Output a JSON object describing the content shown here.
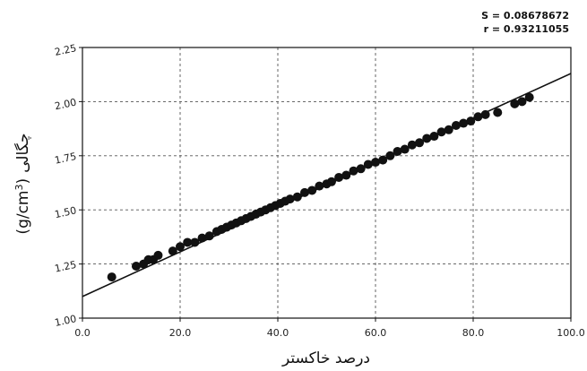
{
  "chart_data": {
    "type": "scatter",
    "title": "",
    "xlabel": "درصد خاکستر",
    "ylabel": "چگالی (g/cm³)",
    "ylabel_parts": {
      "word": "چگالی",
      "unit": "(g/cm",
      "unit_sup": "3",
      "unit_close": ")"
    },
    "xlim": [
      0,
      100
    ],
    "ylim": [
      1.0,
      2.25
    ],
    "grid": true,
    "x_ticks": [
      0,
      20,
      40,
      60,
      80,
      100
    ],
    "x_tick_labels": [
      "0.0",
      "20.0",
      "40.0",
      "60.0",
      "80.0",
      "100.0"
    ],
    "y_ticks": [
      1.0,
      1.25,
      1.5,
      1.75,
      2.0,
      2.25
    ],
    "y_tick_labels": [
      "1.00",
      "1.25",
      "1.50",
      "1.75",
      "2.00",
      "2.25"
    ],
    "stats": [
      "S = 0.08678672",
      "r = 0.93211055"
    ],
    "fit_line": {
      "x": [
        0,
        100
      ],
      "y": [
        1.1,
        2.13
      ]
    },
    "points": [
      {
        "x": 6.0,
        "y": 1.19
      },
      {
        "x": 11.0,
        "y": 1.24
      },
      {
        "x": 12.5,
        "y": 1.25
      },
      {
        "x": 13.5,
        "y": 1.27
      },
      {
        "x": 14.5,
        "y": 1.27
      },
      {
        "x": 15.5,
        "y": 1.29
      },
      {
        "x": 18.5,
        "y": 1.31
      },
      {
        "x": 20.0,
        "y": 1.33
      },
      {
        "x": 21.5,
        "y": 1.35
      },
      {
        "x": 23.0,
        "y": 1.35
      },
      {
        "x": 24.5,
        "y": 1.37
      },
      {
        "x": 26.0,
        "y": 1.38
      },
      {
        "x": 27.5,
        "y": 1.4
      },
      {
        "x": 28.5,
        "y": 1.41
      },
      {
        "x": 29.5,
        "y": 1.42
      },
      {
        "x": 30.5,
        "y": 1.43
      },
      {
        "x": 31.5,
        "y": 1.44
      },
      {
        "x": 32.5,
        "y": 1.45
      },
      {
        "x": 33.5,
        "y": 1.46
      },
      {
        "x": 34.5,
        "y": 1.47
      },
      {
        "x": 35.5,
        "y": 1.48
      },
      {
        "x": 36.5,
        "y": 1.49
      },
      {
        "x": 37.5,
        "y": 1.5
      },
      {
        "x": 38.5,
        "y": 1.51
      },
      {
        "x": 39.5,
        "y": 1.52
      },
      {
        "x": 40.5,
        "y": 1.53
      },
      {
        "x": 41.5,
        "y": 1.54
      },
      {
        "x": 42.5,
        "y": 1.55
      },
      {
        "x": 44.0,
        "y": 1.56
      },
      {
        "x": 45.5,
        "y": 1.58
      },
      {
        "x": 47.0,
        "y": 1.59
      },
      {
        "x": 48.5,
        "y": 1.61
      },
      {
        "x": 50.0,
        "y": 1.62
      },
      {
        "x": 51.0,
        "y": 1.63
      },
      {
        "x": 52.5,
        "y": 1.65
      },
      {
        "x": 54.0,
        "y": 1.66
      },
      {
        "x": 55.5,
        "y": 1.68
      },
      {
        "x": 57.0,
        "y": 1.69
      },
      {
        "x": 58.5,
        "y": 1.71
      },
      {
        "x": 60.0,
        "y": 1.72
      },
      {
        "x": 61.5,
        "y": 1.73
      },
      {
        "x": 63.0,
        "y": 1.75
      },
      {
        "x": 64.5,
        "y": 1.77
      },
      {
        "x": 66.0,
        "y": 1.78
      },
      {
        "x": 67.5,
        "y": 1.8
      },
      {
        "x": 69.0,
        "y": 1.81
      },
      {
        "x": 70.5,
        "y": 1.83
      },
      {
        "x": 72.0,
        "y": 1.84
      },
      {
        "x": 73.5,
        "y": 1.86
      },
      {
        "x": 75.0,
        "y": 1.87
      },
      {
        "x": 76.5,
        "y": 1.89
      },
      {
        "x": 78.0,
        "y": 1.9
      },
      {
        "x": 79.5,
        "y": 1.91
      },
      {
        "x": 81.0,
        "y": 1.93
      },
      {
        "x": 82.5,
        "y": 1.94
      },
      {
        "x": 85.0,
        "y": 1.95
      },
      {
        "x": 88.5,
        "y": 1.99
      },
      {
        "x": 90.0,
        "y": 2.0
      },
      {
        "x": 91.5,
        "y": 2.02
      }
    ],
    "colors": {
      "points": "#111111",
      "fit_line": "#111111",
      "grid": "#555555",
      "frame": "#111111"
    }
  }
}
